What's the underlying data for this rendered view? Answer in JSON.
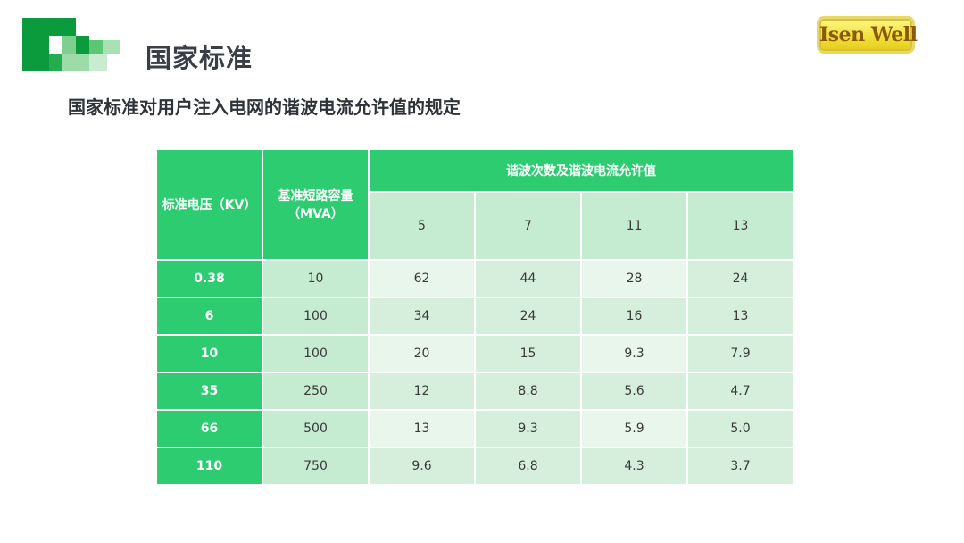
{
  "header": {
    "title": "国家标准",
    "brand": "Isen Well"
  },
  "subtitle": "国家标准对用户注入电网的谐波电流允许值的规定",
  "table": {
    "col_voltage": "标准电压（KV）",
    "col_capacity_line1": "基准短路容量",
    "col_capacity_line2": "（MVA）",
    "col_harmonics": "谐波次数及谐波电流允许值",
    "harmonic_orders": [
      "5",
      "7",
      "11",
      "13"
    ],
    "rows": [
      {
        "voltage": "0.38",
        "capacity": "10",
        "values": [
          "62",
          "44",
          "28",
          "24"
        ]
      },
      {
        "voltage": "6",
        "capacity": "100",
        "values": [
          "34",
          "24",
          "16",
          "13"
        ]
      },
      {
        "voltage": "10",
        "capacity": "100",
        "values": [
          "20",
          "15",
          "9.3",
          "7.9"
        ]
      },
      {
        "voltage": "35",
        "capacity": "250",
        "values": [
          "12",
          "8.8",
          "5.6",
          "4.7"
        ]
      },
      {
        "voltage": "66",
        "capacity": "500",
        "values": [
          "13",
          "9.3",
          "5.9",
          "5.0"
        ]
      },
      {
        "voltage": "110",
        "capacity": "750",
        "values": [
          "9.6",
          "6.8",
          "4.3",
          "3.7"
        ]
      }
    ]
  },
  "colors": {
    "accent": "#2ecc71",
    "light_green": "#c5ebd1",
    "brand_yellow": "#f1e03a"
  }
}
